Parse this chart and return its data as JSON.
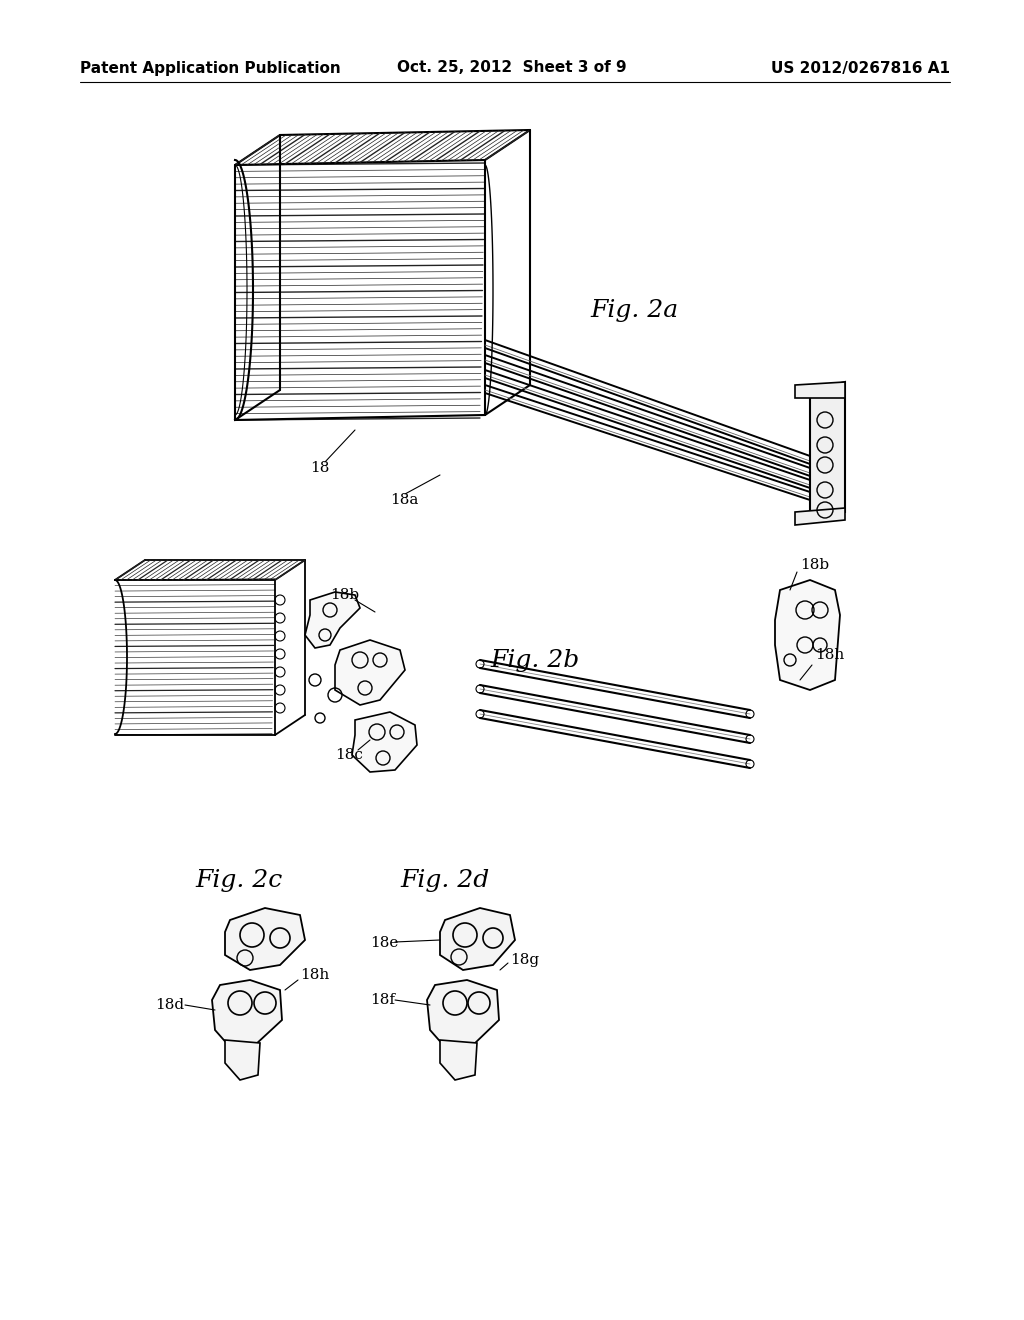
{
  "background_color": "#ffffff",
  "header_left": "Patent Application Publication",
  "header_center": "Oct. 25, 2012  Sheet 3 of 9",
  "header_right": "US 2012/0267816 A1",
  "header_fontsize": 11,
  "fig_label_fontsize": 18,
  "annotation_fontsize": 11
}
